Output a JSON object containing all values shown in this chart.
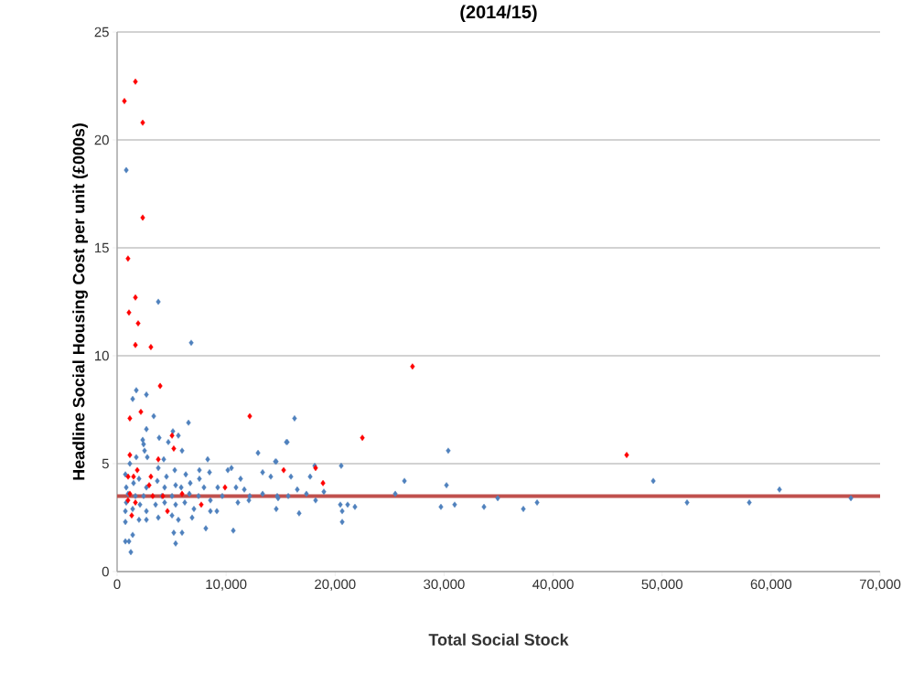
{
  "chart_data": {
    "type": "scatter",
    "title": "(2014/15)",
    "xlabel": "Total Social Stock",
    "ylabel": "Headline Social Housing Cost per unit (£000s)",
    "xlim": [
      0,
      70000
    ],
    "ylim": [
      0,
      25
    ],
    "xticks": [
      0,
      {
        "value": 10000,
        "label": "10,000"
      },
      {
        "value": 20000,
        "label": "20,000"
      },
      {
        "value": 30000,
        "label": "30,000"
      },
      {
        "value": 40000,
        "label": "40,000"
      },
      {
        "value": 50000,
        "label": "50,000"
      },
      {
        "value": 60000,
        "label": "60,000"
      },
      {
        "value": 70000,
        "label": "70,000"
      }
    ],
    "yticks": [
      0,
      5,
      10,
      15,
      20,
      25
    ],
    "grid": "y",
    "marker": "diamond",
    "ref_lines": [
      {
        "axis": "y",
        "value": 3.5,
        "color": "#c0504d"
      }
    ],
    "series": [
      {
        "color": "#4f81bd",
        "x": [
          840,
          3780,
          6800,
          1760,
          1430,
          2690,
          3360,
          6550,
          2690,
          2350,
          2430,
          3860,
          4700,
          5120,
          5620,
          5960,
          2520,
          2770,
          1760,
          1170,
          4280,
          3780,
          5290,
          6300,
          7550,
          8310,
          8480,
          10490,
          11330,
          12930,
          14520,
          15530,
          13350,
          14100,
          10160,
          760,
          840,
          1510,
          2010,
          2690,
          3690,
          4530,
          4360,
          5370,
          5880,
          6710,
          7550,
          7970,
          9230,
          10910,
          11670,
          12170,
          13350,
          14690,
          1010,
          1680,
          2430,
          4110,
          5040,
          6630,
          7470,
          8560,
          9650,
          11080,
          12090,
          840,
          1430,
          2100,
          2690,
          3530,
          4360,
          5370,
          6210,
          7050,
          8560,
          9150,
          760,
          760,
          2010,
          2690,
          3780,
          5040,
          5620,
          6880,
          8140,
          10660,
          5200,
          5960,
          1430,
          760,
          1090,
          5370,
          1260,
          16280,
          15610,
          30380,
          20560,
          14600,
          15950,
          17710,
          18130,
          26360,
          30220,
          49190,
          60770,
          67320,
          52290,
          58000,
          38530,
          34920,
          37270,
          33660,
          29710,
          30970,
          25520,
          20480,
          21150,
          21820,
          20650,
          20650,
          18970,
          17370,
          16530,
          15700,
          16700,
          18210,
          14770,
          14600
        ],
        "values": [
          18.6,
          12.5,
          10.6,
          8.4,
          8.0,
          8.2,
          7.2,
          6.9,
          6.6,
          6.1,
          5.9,
          6.2,
          6.0,
          6.5,
          6.3,
          5.6,
          5.6,
          5.3,
          5.3,
          5.0,
          5.2,
          4.8,
          4.7,
          4.5,
          4.7,
          5.2,
          4.6,
          4.8,
          4.3,
          5.5,
          5.1,
          6.0,
          4.6,
          4.4,
          4.7,
          4.5,
          3.9,
          4.1,
          4.3,
          3.9,
          4.2,
          4.4,
          3.9,
          4.0,
          3.9,
          4.1,
          4.3,
          3.9,
          3.9,
          3.9,
          3.8,
          3.5,
          3.6,
          3.5,
          3.6,
          3.5,
          3.5,
          3.5,
          3.5,
          3.6,
          3.5,
          3.3,
          3.5,
          3.2,
          3.3,
          3.2,
          2.9,
          3.1,
          2.8,
          3.1,
          3.2,
          3.1,
          3.2,
          2.9,
          2.8,
          2.8,
          2.8,
          2.3,
          2.4,
          2.4,
          2.5,
          2.6,
          2.4,
          2.5,
          2.0,
          1.9,
          1.8,
          1.8,
          1.7,
          1.4,
          1.4,
          1.3,
          0.9,
          7.1,
          6.0,
          5.6,
          4.9,
          5.1,
          4.4,
          4.4,
          4.9,
          4.2,
          4.0,
          4.2,
          3.8,
          3.4,
          3.2,
          3.2,
          3.2,
          3.4,
          2.9,
          3.0,
          3.0,
          3.1,
          3.6,
          3.1,
          3.1,
          3.0,
          2.3,
          2.8,
          3.7,
          3.6,
          3.8,
          3.5,
          2.7,
          3.3,
          3.4,
          2.9
        ]
      },
      {
        "color": "#ff0000",
        "x": [
          670,
          1680,
          2350,
          2350,
          1000,
          1680,
          1090,
          1930,
          1680,
          3100,
          3950,
          1170,
          2180,
          12170,
          27100,
          22500,
          46750,
          5040,
          5200,
          1170,
          3780,
          1850,
          1510,
          1010,
          3100,
          2940,
          1170,
          1680,
          4200,
          5960,
          4620,
          1340,
          7720,
          9900,
          15280,
          18210,
          18890,
          3270,
          1000
        ],
        "values": [
          21.8,
          22.7,
          20.8,
          16.4,
          14.5,
          12.7,
          12.0,
          11.5,
          10.5,
          10.4,
          8.6,
          7.1,
          7.4,
          7.2,
          9.5,
          6.2,
          5.4,
          6.3,
          5.7,
          5.4,
          5.2,
          4.7,
          4.4,
          4.4,
          4.4,
          4.0,
          3.6,
          3.2,
          3.5,
          3.6,
          2.8,
          2.6,
          3.1,
          3.9,
          4.7,
          4.8,
          4.1,
          3.5,
          3.3
        ]
      }
    ]
  }
}
